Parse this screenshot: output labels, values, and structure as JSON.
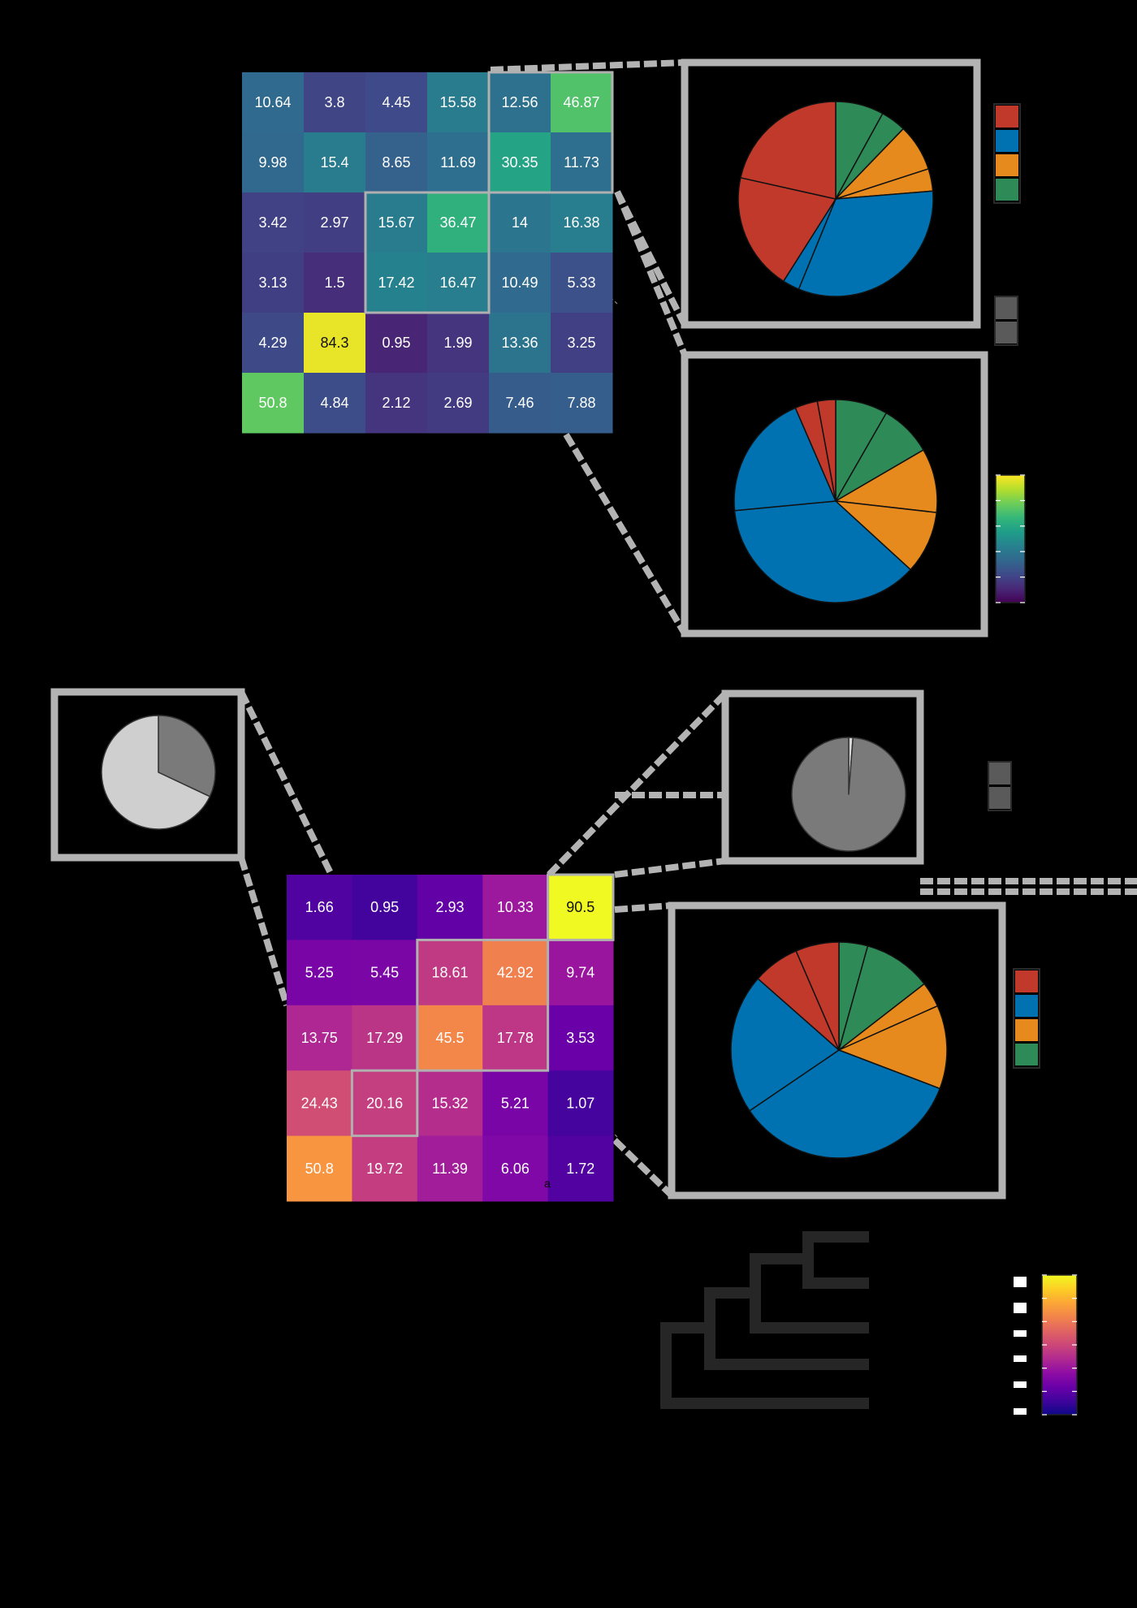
{
  "chart_data": [
    {
      "type": "heatmap",
      "colormap": "viridis",
      "values": [
        [
          10.64,
          3.8,
          4.45,
          15.58,
          12.56,
          46.87
        ],
        [
          9.98,
          15.4,
          8.65,
          11.69,
          30.35,
          11.73
        ],
        [
          3.42,
          2.97,
          15.67,
          36.47,
          14,
          16.38
        ],
        [
          3.13,
          1.5,
          17.42,
          16.47,
          10.49,
          5.33
        ],
        [
          4.29,
          84.3,
          0.95,
          1.99,
          13.36,
          3.25
        ],
        [
          50.8,
          4.84,
          2.12,
          2.69,
          7.46,
          7.88
        ]
      ],
      "highlighted_blocks": [
        {
          "rows": [
            0,
            1
          ],
          "cols": [
            4,
            5
          ]
        },
        {
          "rows": [
            2,
            3
          ],
          "cols": [
            2,
            3
          ]
        }
      ],
      "colorbar": {
        "colormap": "viridis"
      }
    },
    {
      "type": "pie",
      "zoom_of": "top heatmap rows 0-1, cols 4-5",
      "series_colors": [
        "#c0392b",
        "#0072b2",
        "#e68a1e",
        "#2e8b57"
      ],
      "slices": [
        {
          "color": "#2e8b57",
          "value": 8.0
        },
        {
          "color": "#2e8b57",
          "value": 4.2
        },
        {
          "color": "#e68a1e",
          "value": 7.8
        },
        {
          "color": "#e68a1e",
          "value": 3.7
        },
        {
          "color": "#0072b2",
          "value": 32.5
        },
        {
          "color": "#0072b2",
          "value": 2.8
        },
        {
          "color": "#c0392b",
          "value": 19.5
        },
        {
          "color": "#c0392b",
          "value": 21.5
        }
      ]
    },
    {
      "type": "pie",
      "zoom_of": "top heatmap rows 2-3, cols 2-3",
      "slices": [
        {
          "color": "#2e8b57",
          "value": 8.3
        },
        {
          "color": "#2e8b57",
          "value": 8.3
        },
        {
          "color": "#e68a1e",
          "value": 10.2
        },
        {
          "color": "#e68a1e",
          "value": 10.0
        },
        {
          "color": "#0072b2",
          "value": 36.7
        },
        {
          "color": "#0072b2",
          "value": 20.0
        },
        {
          "color": "#c0392b",
          "value": 3.6
        },
        {
          "color": "#c0392b",
          "value": 2.9
        }
      ]
    },
    {
      "type": "heatmap",
      "colormap": "plasma",
      "values": [
        [
          1.66,
          0.95,
          2.93,
          10.33,
          90.5
        ],
        [
          5.25,
          5.45,
          18.61,
          42.92,
          9.74
        ],
        [
          13.75,
          17.29,
          45.5,
          17.78,
          3.53
        ],
        [
          24.43,
          20.16,
          15.32,
          5.21,
          1.07
        ],
        [
          50.8,
          19.72,
          11.39,
          6.06,
          1.72
        ]
      ],
      "highlighted_blocks": [
        {
          "rows": [
            0,
            0
          ],
          "cols": [
            4,
            4
          ]
        },
        {
          "rows": [
            1,
            2
          ],
          "cols": [
            2,
            3
          ]
        },
        {
          "rows": [
            3,
            3
          ],
          "cols": [
            1,
            1
          ]
        }
      ],
      "annotations": [
        "a"
      ],
      "colorbar": {
        "colormap": "plasma"
      }
    },
    {
      "type": "pie",
      "zoom_of": "bottom heatmap row 3, col 1",
      "slices": [
        {
          "color": "#7a7a7a",
          "value": 32
        },
        {
          "color": "#cfcfcf",
          "value": 68
        }
      ]
    },
    {
      "type": "pie",
      "zoom_of": "bottom heatmap row 0, col 4",
      "slices": [
        {
          "color": "#d8d8d8",
          "value": 1.2
        },
        {
          "color": "#7a7a7a",
          "value": 98.8
        }
      ]
    },
    {
      "type": "pie",
      "zoom_of": "bottom heatmap rows 1-2, cols 2-3",
      "slices": [
        {
          "color": "#2e8b57",
          "value": 4.3
        },
        {
          "color": "#2e8b57",
          "value": 10.2
        },
        {
          "color": "#e68a1e",
          "value": 3.8
        },
        {
          "color": "#e68a1e",
          "value": 12.5
        },
        {
          "color": "#0072b2",
          "value": 34.7
        },
        {
          "color": "#0072b2",
          "value": 21.0
        },
        {
          "color": "#c0392b",
          "value": 7.0
        },
        {
          "color": "#c0392b",
          "value": 6.5
        }
      ]
    },
    {
      "type": "dendrogram",
      "leaves": 5
    }
  ]
}
